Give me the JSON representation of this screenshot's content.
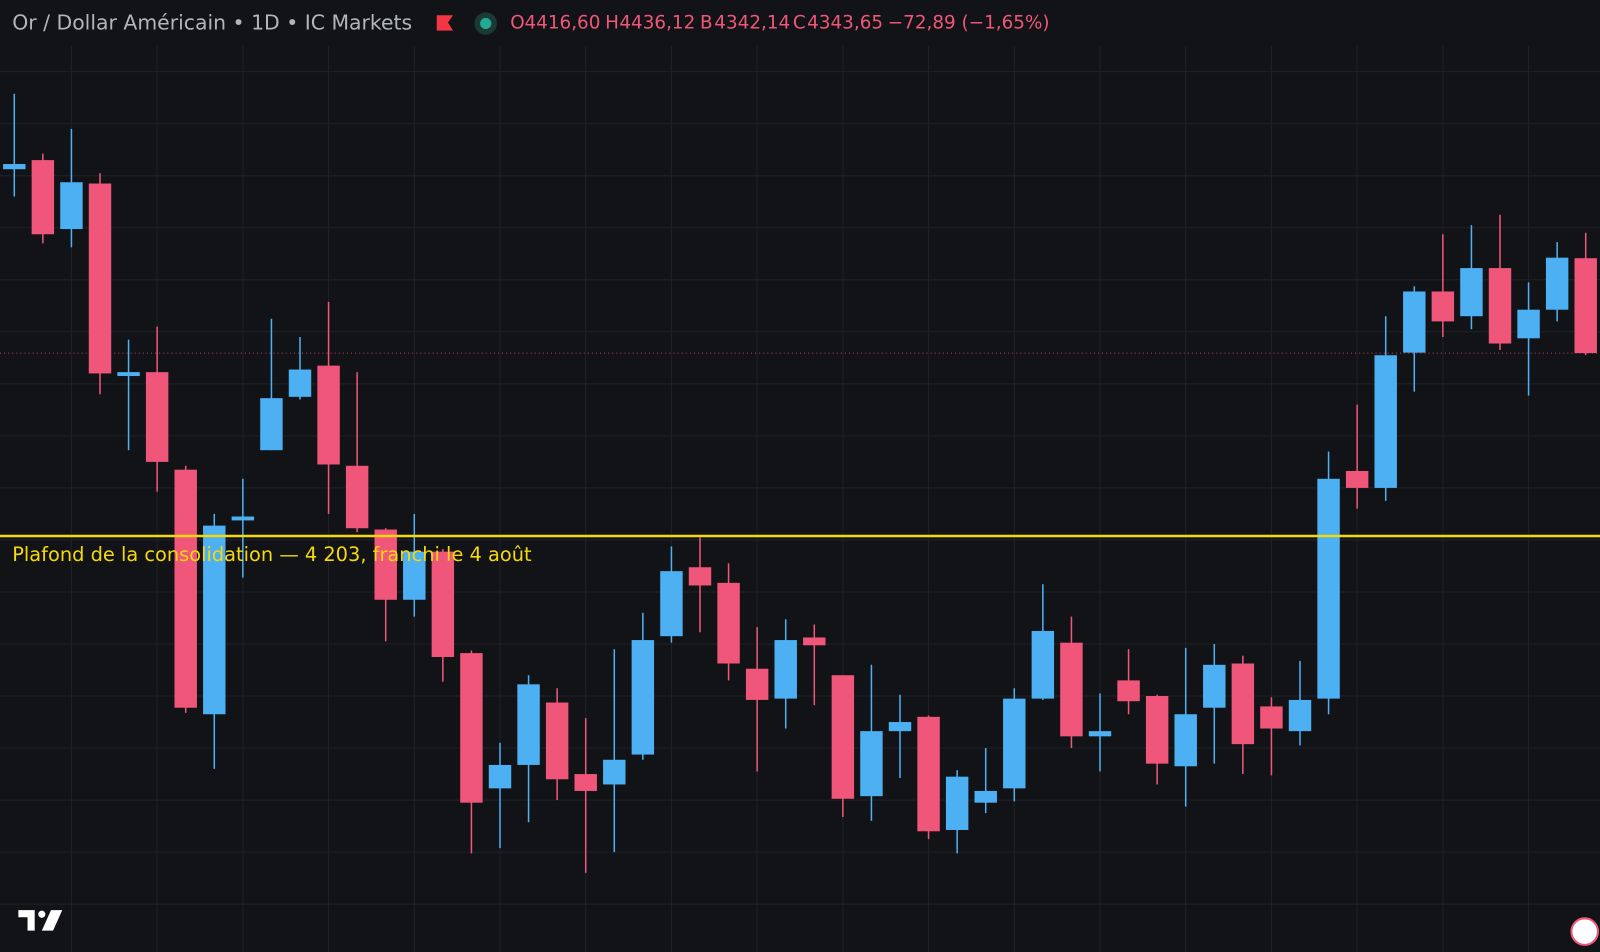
{
  "header": {
    "symbol": "Or / Dollar Américain • 1D • IC Markets",
    "ohlc": [
      {
        "label": "O",
        "value": "4416,60"
      },
      {
        "label": "H",
        "value": "4436,12"
      },
      {
        "label": "B",
        "value": "4342,14"
      },
      {
        "label": "C",
        "value": "4343,65"
      }
    ],
    "change": "−72,89 (−1,65%)"
  },
  "chart_data": {
    "type": "candlestick",
    "categories": [
      null,
      null,
      null,
      null,
      null,
      null,
      null,
      null,
      null,
      null,
      null,
      null,
      null,
      null,
      null,
      null,
      null,
      null,
      null,
      null,
      null,
      null,
      null,
      null,
      null,
      null,
      null,
      null,
      null,
      null,
      null,
      null,
      null,
      null,
      null,
      null,
      null,
      null,
      null,
      null,
      null,
      null,
      null,
      null,
      null,
      null,
      null,
      null,
      null,
      null,
      null,
      null,
      null,
      null,
      null,
      null
    ],
    "open": [
      4485,
      4492,
      4439,
      4474,
      4326,
      4329,
      4254,
      4066,
      4215,
      4269,
      4310,
      4334,
      4257,
      4208,
      4154,
      4191,
      4113,
      4009,
      4027,
      4075,
      4020,
      4012,
      4035,
      4126,
      4179,
      4167,
      4101,
      4078,
      4125,
      4096,
      4003,
      4053,
      4064,
      3977,
      3998,
      4009,
      4078,
      4121,
      4049,
      4092,
      4080,
      4026,
      4071,
      4105,
      4072,
      4053,
      4078,
      4253,
      4240,
      4344,
      4391,
      4372,
      4409,
      4355,
      4377,
      4416.6
    ],
    "high": [
      4543,
      4497,
      4516,
      4482,
      4354,
      4364,
      4257,
      4220,
      4247,
      4370,
      4356,
      4383,
      4329,
      4209,
      4220,
      4193,
      4115,
      4044,
      4096,
      4086,
      4063,
      4116,
      4144,
      4195,
      4202,
      4182,
      4133,
      4139,
      4135,
      4096,
      4104,
      4081,
      4065,
      4023,
      4040,
      4086,
      4166,
      4141,
      4082,
      4116,
      4081,
      4117,
      4120,
      4111,
      4079,
      4107,
      4268,
      4304,
      4372,
      4395,
      4435,
      4442,
      4450,
      4398,
      4429,
      4436.12
    ],
    "low": [
      4464,
      4428,
      4425,
      4312,
      4269,
      4237,
      4067,
      4024,
      4171,
      4269,
      4308,
      4220,
      4206,
      4122,
      4141,
      4091,
      3959,
      3963,
      3983,
      4000,
      3944,
      3960,
      4031,
      4121,
      4129,
      4092,
      4022,
      4055,
      4073,
      3987,
      3984,
      4017,
      3970,
      3959,
      3990,
      3999,
      4077,
      4040,
      4022,
      4066,
      4012,
      3995,
      4028,
      4020,
      4019,
      4042,
      4066,
      4224,
      4230,
      4314,
      4356,
      4362,
      4346,
      4311,
      4368,
      4342.14
    ],
    "close": [
      4489,
      4435,
      4475,
      4328,
      4329,
      4260,
      4071,
      4211,
      4218,
      4309,
      4331,
      4258,
      4209,
      4154,
      4191,
      4110,
      3998,
      4027,
      4089,
      4016,
      4007,
      4031,
      4123,
      4176,
      4165,
      4105,
      4077,
      4123,
      4119,
      4001,
      4053,
      4060,
      3976,
      4018,
      4007,
      4078,
      4130,
      4049,
      4053,
      4076,
      4028,
      4066,
      4104,
      4043,
      4055,
      4077,
      4247,
      4240,
      4342,
      4391,
      4368,
      4409,
      4351,
      4377,
      4417,
      4343.65
    ],
    "up_color": "#4cb0f2",
    "down_color": "#ef5679",
    "ylim": [
      3883.2,
      4615.1
    ],
    "yticks": [
      3920,
      3960,
      4000,
      4040,
      4080,
      4120,
      4160,
      4200,
      4240,
      4280,
      4320,
      4360,
      4400,
      4440,
      4480,
      4520,
      4560
    ],
    "grid": true,
    "annotations": [
      {
        "label": "Plafond de la consolidation — 4 203, franchi le 4 août",
        "value": 4203,
        "color": "#f5d90a"
      }
    ]
  }
}
